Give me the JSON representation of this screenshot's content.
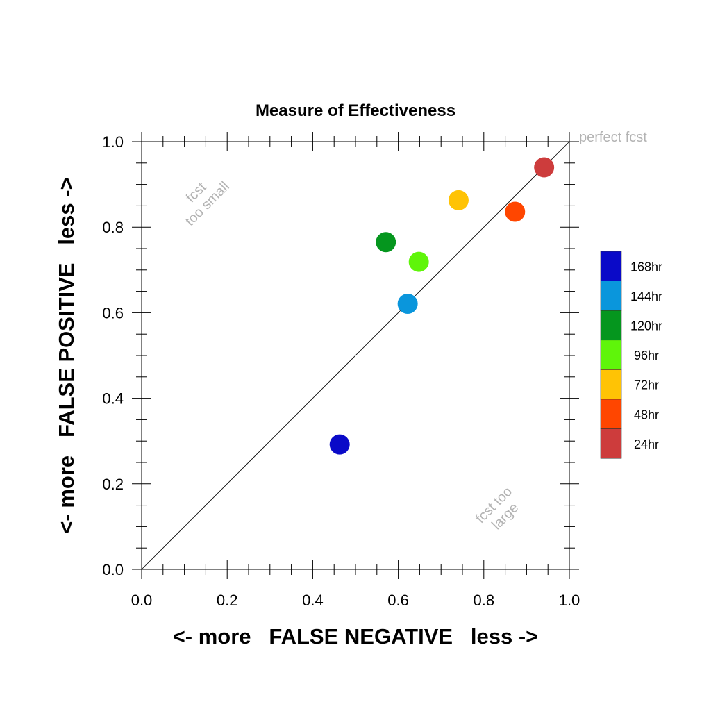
{
  "chart_data": {
    "type": "scatter",
    "title": "Measure of Effectiveness",
    "xlabel": "<- more   FALSE NEGATIVE   less ->",
    "ylabel": "<- more   FALSE POSITIVE   less ->",
    "xlim": [
      0.0,
      1.0
    ],
    "ylim": [
      0.0,
      1.0
    ],
    "x_ticks": [
      "0.0",
      "0.2",
      "0.4",
      "0.6",
      "0.8",
      "1.0"
    ],
    "y_ticks": [
      "0.0",
      "0.2",
      "0.4",
      "0.6",
      "0.8",
      "1.0"
    ],
    "grid": false,
    "legend_placement": "right",
    "reference_line": {
      "from": [
        0.0,
        0.0
      ],
      "to": [
        1.0,
        1.0
      ]
    },
    "annotations": {
      "perfect": "perfect fcst",
      "too_small": [
        "fcst",
        "too small"
      ],
      "too_large": [
        "fcst too",
        "large"
      ]
    },
    "series": [
      {
        "name": "168hr",
        "x": 0.463,
        "y": 0.292,
        "color": "#0a0ac8"
      },
      {
        "name": "144hr",
        "x": 0.622,
        "y": 0.621,
        "color": "#0a96dc"
      },
      {
        "name": "120hr",
        "x": 0.571,
        "y": 0.765,
        "color": "#05961e"
      },
      {
        "name": "96hr",
        "x": 0.648,
        "y": 0.719,
        "color": "#5ff50a"
      },
      {
        "name": "72hr",
        "x": 0.741,
        "y": 0.863,
        "color": "#ffc305"
      },
      {
        "name": "48hr",
        "x": 0.873,
        "y": 0.836,
        "color": "#ff4600"
      },
      {
        "name": "24hr",
        "x": 0.941,
        "y": 0.94,
        "color": "#cd3c3c"
      }
    ]
  }
}
